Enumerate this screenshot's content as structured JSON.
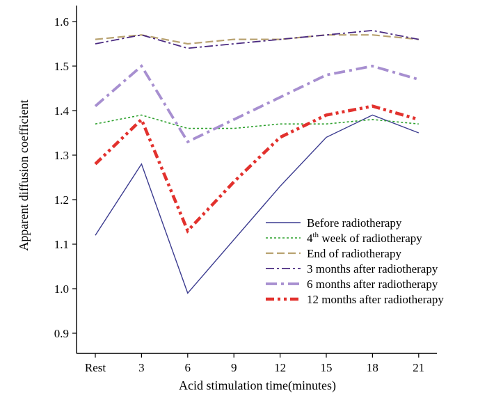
{
  "chart_data": {
    "type": "line",
    "xlabel": "Acid stimulation time(minutes)",
    "ylabel": "Apparent diffusion coefficient",
    "categories": [
      "Rest",
      "3",
      "6",
      "9",
      "12",
      "15",
      "18",
      "21"
    ],
    "ylim": [
      0.85,
      1.63
    ],
    "yticks": [
      "0.9",
      "1.0",
      "1.1",
      "1.2",
      "1.3",
      "1.4",
      "1.5",
      "1.6"
    ],
    "ytick_values": [
      0.9,
      1.0,
      1.1,
      1.2,
      1.3,
      1.4,
      1.5,
      1.6
    ],
    "legend_position": "bottom-right",
    "series": [
      {
        "name": "Before radiotherapy",
        "legend_main": "Before radiotherapy",
        "legend_sup": "",
        "legend_rest": "",
        "values": [
          1.12,
          1.28,
          0.99,
          1.11,
          1.23,
          1.34,
          1.39,
          1.35
        ],
        "color": "#3b3b8f",
        "style": "solid"
      },
      {
        "name": "4th week of radiotherapy",
        "legend_main": "4",
        "legend_sup": "th",
        "legend_rest": " week of radiotherapy",
        "values": [
          1.37,
          1.39,
          1.36,
          1.36,
          1.37,
          1.37,
          1.38,
          1.37
        ],
        "color": "#2ca02c",
        "style": "dotted"
      },
      {
        "name": "End of radiotherapy",
        "legend_main": "End of radiotherapy",
        "legend_sup": "",
        "legend_rest": "",
        "values": [
          1.56,
          1.57,
          1.55,
          1.56,
          1.56,
          1.57,
          1.57,
          1.56
        ],
        "color": "#b8a270",
        "style": "dashed"
      },
      {
        "name": "3 months after radiotherapy",
        "legend_main": "3 months after radiotherapy",
        "legend_sup": "",
        "legend_rest": "",
        "values": [
          1.55,
          1.57,
          1.54,
          1.55,
          1.56,
          1.57,
          1.58,
          1.56
        ],
        "color": "#4a2a80",
        "style": "dashdot"
      },
      {
        "name": "6 months after radiotherapy",
        "legend_main": "6 months after radiotherapy",
        "legend_sup": "",
        "legend_rest": "",
        "values": [
          1.41,
          1.5,
          1.33,
          1.38,
          1.43,
          1.48,
          1.5,
          1.47
        ],
        "color": "#a78fd0",
        "style": "dashdot-thick"
      },
      {
        "name": "12 months after radiotherapy",
        "legend_main": "12 months after radiotherapy",
        "legend_sup": "",
        "legend_rest": "",
        "values": [
          1.28,
          1.38,
          1.13,
          1.24,
          1.34,
          1.39,
          1.41,
          1.38
        ],
        "color": "#e2312d",
        "style": "dashdotdot-thick"
      }
    ]
  }
}
